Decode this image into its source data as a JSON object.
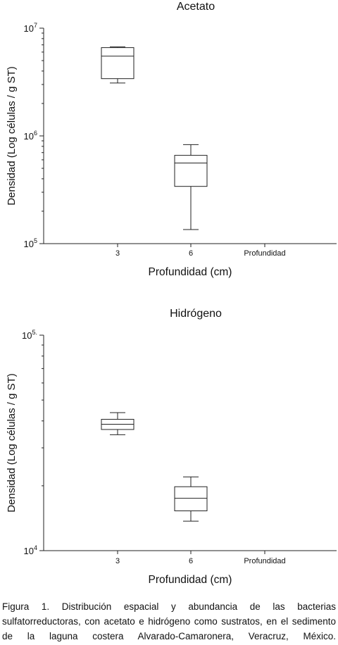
{
  "chart_data": [
    {
      "type": "box",
      "title": "Acetato",
      "xlabel": "Profundidad (cm)",
      "ylabel": "Densidad (Log células / g ST)",
      "y_scale": "log",
      "ylim": [
        100000,
        10000000
      ],
      "y_ticks": [
        {
          "value": 100000,
          "base": "10",
          "exp": "5"
        },
        {
          "value": 1000000,
          "base": "10",
          "exp": "6"
        },
        {
          "value": 10000000,
          "base": "10",
          "exp": "7"
        }
      ],
      "categories": [
        "3",
        "6",
        "Profundidad"
      ],
      "boxes": [
        {
          "category": "3",
          "min": 3100000,
          "q1": 3400000,
          "median": 5500000,
          "q3": 6600000,
          "max": 6700000
        },
        {
          "category": "6",
          "min": 135000,
          "q1": 340000,
          "median": 560000,
          "q3": 660000,
          "max": 830000
        }
      ]
    },
    {
      "type": "box",
      "title": "Hidrógeno",
      "xlabel": "Profundidad (cm)",
      "ylabel": "Densidad (Log células / g ST)",
      "y_scale": "log",
      "ylim": [
        10000,
        100000
      ],
      "y_ticks": [
        {
          "value": 10000,
          "base": "10",
          "exp": "4"
        },
        {
          "value": 100000,
          "base": "10",
          "exp": "5."
        }
      ],
      "categories": [
        "3",
        "6",
        "Profundidad"
      ],
      "boxes": [
        {
          "category": "3",
          "min": 34500,
          "q1": 36500,
          "median": 38600,
          "q3": 40700,
          "max": 43700
        },
        {
          "category": "6",
          "min": 13700,
          "q1": 15300,
          "median": 17500,
          "q3": 19800,
          "max": 22000
        }
      ]
    }
  ],
  "caption": "Figura 1. Distribución espacial y abundancia de las bacterias sulfatorreductoras, con acetato e hidrógeno como sustratos, en el sedimento de la laguna costera Alvarado-Camaronera, Veracruz, México."
}
